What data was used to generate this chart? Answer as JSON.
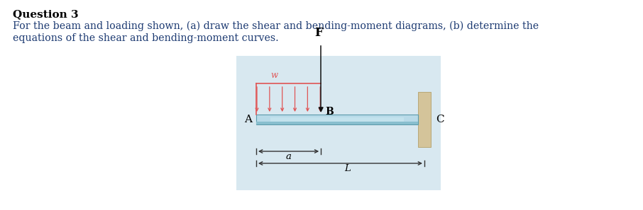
{
  "title": "Question 3",
  "body_text_line1": "For the beam and loading shown, (a) draw the shear and bending-moment diagrams, (b) determine the",
  "body_text_line2": "equations of the shear and bending-moment curves.",
  "bg_color": "#d8e8f0",
  "beam_color_top": "#b8dae8",
  "beam_color_mid": "#9ecede",
  "beam_color_bottom": "#88bece",
  "wall_color": "#d4c49a",
  "wall_edge_color": "#b8a878",
  "dist_load_color": "#e05555",
  "force_color": "#111111",
  "dim_color": "#333333",
  "text_color": "#1a3870",
  "title_color": "#000000",
  "label_A": "A",
  "label_B": "B",
  "label_C": "C",
  "label_F": "F",
  "label_w": "w",
  "label_a": "a",
  "label_L": "L",
  "fig_width": 9.06,
  "fig_height": 2.97,
  "dpi": 100
}
